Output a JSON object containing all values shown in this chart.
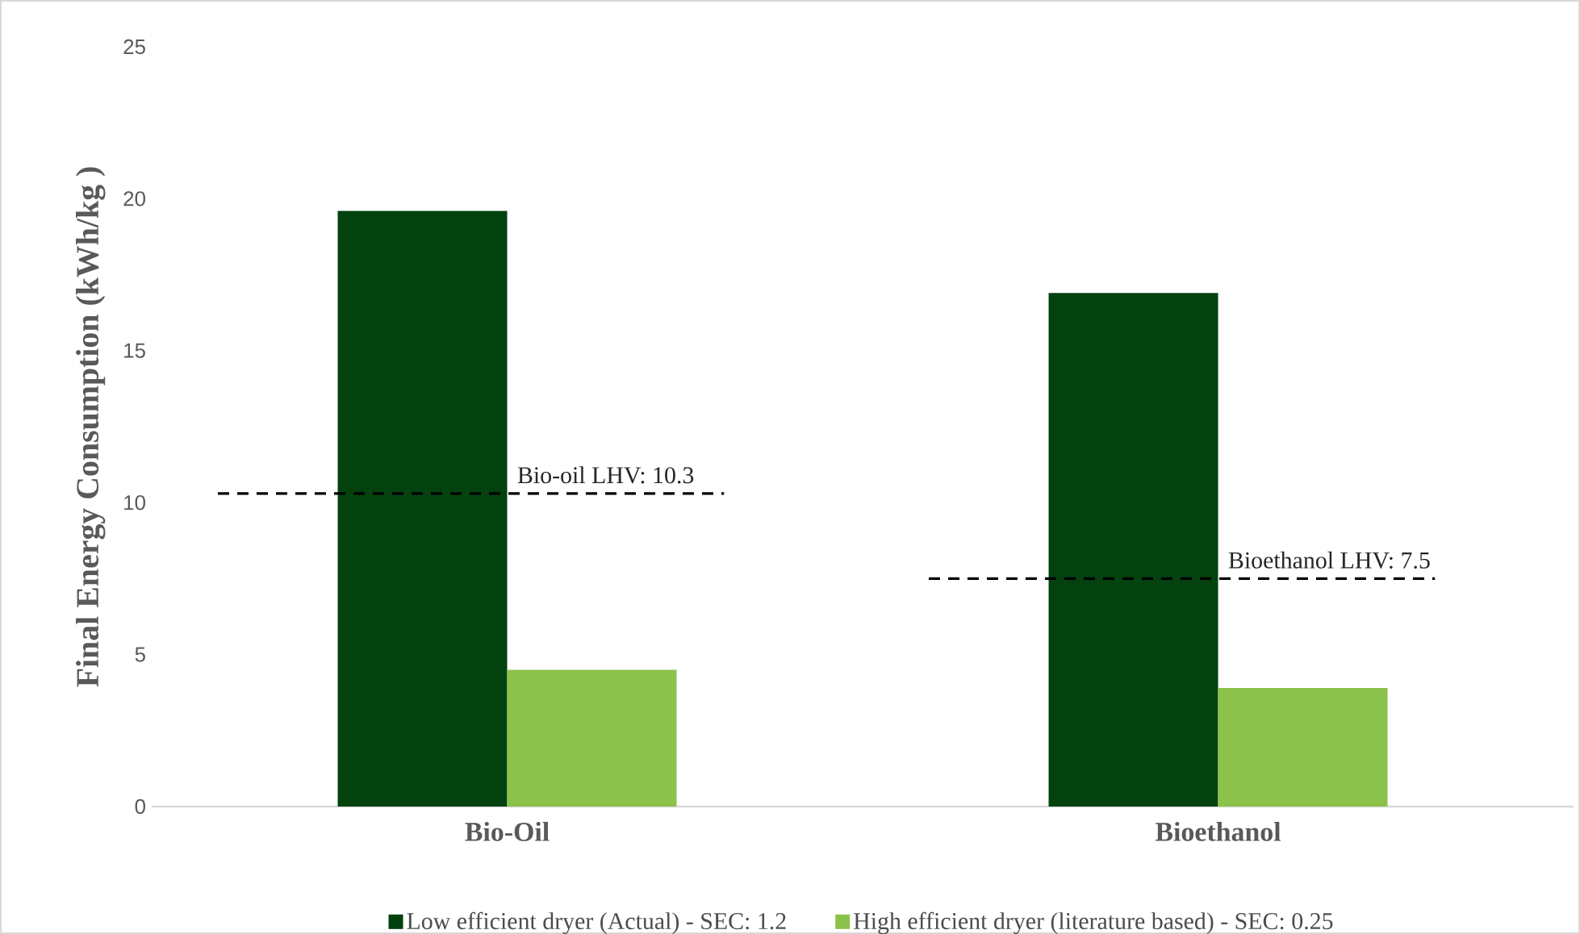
{
  "chart_data": {
    "type": "bar",
    "ylabel": "Final Energy Consumption (kWh/kg )",
    "categories": [
      "Bio-Oil",
      "Bioethanol"
    ],
    "series": [
      {
        "name": "Low efficient dryer (Actual) - SEC: 1.2",
        "color": "#03420f",
        "values": [
          19.6,
          16.9
        ]
      },
      {
        "name": "High efficient dryer (literature based) - SEC: 0.25",
        "color": "#8bc24c",
        "values": [
          4.5,
          3.9
        ]
      }
    ],
    "ylim": [
      0,
      25
    ],
    "yticks": [
      0,
      5,
      10,
      15,
      20,
      25
    ],
    "legend": "bottom",
    "ref_lines": [
      {
        "axis": "y",
        "value": 10.3,
        "label": "Bio-oil LHV: 10.3",
        "color": "#000000",
        "line_style": "dashed"
      },
      {
        "axis": "y",
        "value": 7.5,
        "label": "Bioethanol LHV: 7.5",
        "color": "#000000",
        "line_style": "dashed"
      }
    ]
  }
}
